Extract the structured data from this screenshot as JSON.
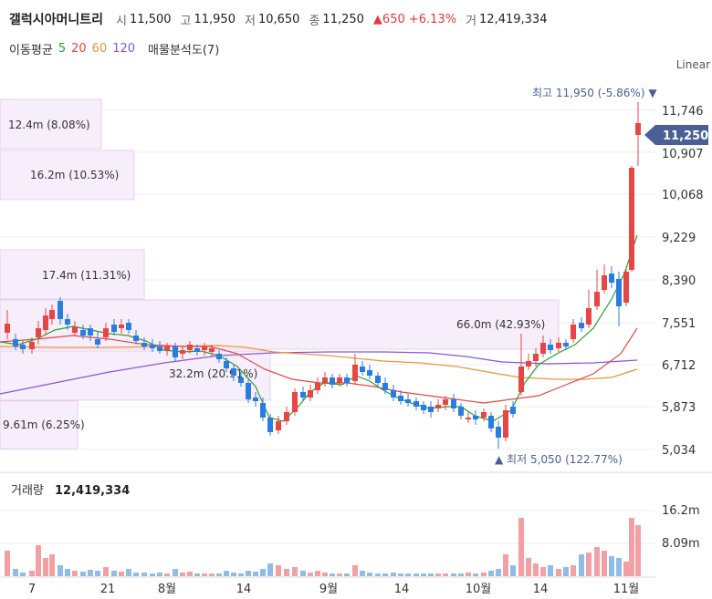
{
  "header": {
    "name": "갤럭시아머니트리",
    "open_label": "시",
    "open": "11,500",
    "high_label": "고",
    "high": "11,950",
    "low_label": "저",
    "low": "10,650",
    "close_label": "종",
    "close": "11,250",
    "change": "▲650 +6.13%",
    "volume_label": "거",
    "volume": "12,419,334"
  },
  "indicators": {
    "ma_label": "이동평균",
    "ma": [
      {
        "v": "5",
        "color": "#2aa12a"
      },
      {
        "v": "20",
        "color": "#e84545"
      },
      {
        "v": "60",
        "color": "#e6963a"
      },
      {
        "v": "120",
        "color": "#8a55d8"
      }
    ],
    "vp_label": "매물분석도(7)"
  },
  "scale_label": "Linear",
  "price_axis": [
    "11,746",
    "10,907",
    "10,068",
    "9,229",
    "8,390",
    "7,551",
    "6,712",
    "5,873",
    "5,034"
  ],
  "current_price": "11,250",
  "max_note": "최고 11,950 (-5.86%) ▼",
  "min_note": "▲ 최저 5,050 (122.77%)",
  "volume_profile": [
    "12.4m (8.08%)",
    "16.2m (10.53%)",
    "17.4m (11.31%)",
    "66.0m (42.93%)",
    "32.2m (20.91%)",
    "9.61m (6.25%)"
  ],
  "volume_title": "거래량",
  "volume_value": "12,419,334",
  "volume_axis": [
    "16.2m",
    "8.09m"
  ],
  "x_axis": [
    "7",
    "21",
    "8월",
    "14",
    "9월",
    "14",
    "10월",
    "14",
    "11월"
  ]
}
